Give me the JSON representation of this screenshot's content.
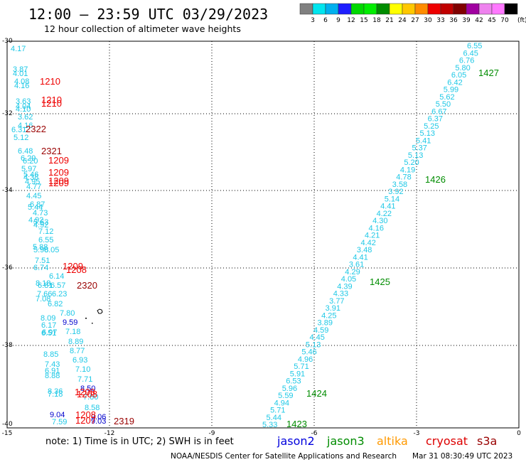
{
  "header": {
    "title": "12:00 – 23:59 UTC 03/29/2023",
    "subtitle": "12 hour collection of altimeter wave heights"
  },
  "legend": {
    "colors": [
      "#808080",
      "#00e5ee",
      "#00b0ee",
      "#1e1eff",
      "#00d800",
      "#00ee00",
      "#008c00",
      "#ffff00",
      "#ffc800",
      "#ff8c00",
      "#ee0000",
      "#c00000",
      "#800000",
      "#a000a0",
      "#ee82ee",
      "#ff78ff",
      "#000000"
    ],
    "labels": [
      "3",
      "6",
      "9",
      "12",
      "15",
      "18",
      "21",
      "24",
      "27",
      "30",
      "33",
      "36",
      "39",
      "42",
      "45",
      "70",
      "(ft)"
    ]
  },
  "axes": {
    "lat_labels": [
      "-30",
      "-32",
      "-34",
      "-36",
      "-38",
      "-40"
    ],
    "lon_labels": [
      "-15",
      "-12",
      "-9",
      "-6",
      "-3",
      "0"
    ]
  },
  "note": "note:  1) Time is in UTC;  2) SWH is in feet",
  "satellites": [
    {
      "name": "jason2",
      "color": "#0000dd"
    },
    {
      "name": "jason3",
      "color": "#008c00"
    },
    {
      "name": "altika",
      "color": "#ff9900"
    },
    {
      "name": "cryosat",
      "color": "#dd0000"
    },
    {
      "name": "s3a",
      "color": "#990000"
    }
  ],
  "footer": {
    "credit": "NOAA/NESDIS Center for Satellite Applications and Research",
    "timestamp": "Mar 31 08:30:49 UTC 2023"
  },
  "chart_data": {
    "type": "scatter",
    "xlim": [
      -15,
      0
    ],
    "ylim": [
      -40,
      -30
    ],
    "track_right_values": [
      "6.55",
      "6.45",
      "6.76",
      "5.80",
      "6.05",
      "6.42",
      "5.99",
      "5.62",
      "5.50",
      "6.67",
      "6.37",
      "5.25",
      "5.13",
      "5.41",
      "5.37",
      "5.13",
      "5.20",
      "4.19",
      "4.78",
      "3.58",
      "3.92",
      "5.14",
      "4.41",
      "4.22",
      "4.30",
      "4.16",
      "4.21",
      "4.42",
      "3.48",
      "4.41",
      "3.61",
      "4.29",
      "4.05",
      "4.39",
      "4.33",
      "3.77",
      "3.91",
      "4.25",
      "3.89",
      "4.59",
      "4.45",
      "5.13",
      "5.46",
      "4.96",
      "5.71",
      "5.91",
      "6.53",
      "5.96",
      "5.59",
      "4.94",
      "5.71",
      "5.44",
      "5.33"
    ],
    "track_left_values": [
      "4.17",
      "3.87",
      "4.01",
      "4.08",
      "4.16",
      "3.63",
      "4.04",
      "4.10",
      "3.62",
      "4.16",
      "6.31",
      "5.12",
      "6.48",
      "6.29",
      "6.20",
      "5.97",
      "5.46",
      "4.38",
      "4.95",
      "4.77",
      "4.45",
      "6.87",
      "5.44",
      "4.73",
      "4.92",
      "5.63",
      "4.92",
      "7.12",
      "6.55",
      "5.88",
      "5.98",
      "6.05",
      "7.51",
      "6.74",
      "6.14",
      "8.18",
      "6.81",
      "6.57",
      "7.66",
      "6.23",
      "7.08",
      "6.82",
      "7.80",
      "8.09",
      "6.17",
      "6.51",
      "7.18",
      "6.97",
      "8.89",
      "8.77",
      "8.85",
      "6.93",
      "7.43",
      "6.91",
      "7.10",
      "8.88",
      "7.71",
      "8.36",
      "7.18",
      "7.80",
      "8.58",
      "7.59",
      "8.41"
    ],
    "track_left_blue_values": [
      "9.59",
      "8.50",
      "9.04",
      "9.06",
      "9.03"
    ],
    "time_labels_red": [
      "1210",
      "1210",
      "1210",
      "1209",
      "1209",
      "1209",
      "1209",
      "1209",
      "1208",
      "1208",
      "1208",
      "1208",
      "1207"
    ],
    "time_labels_darkred": [
      "2322",
      "2321",
      "2320",
      "2319"
    ],
    "time_labels_green": [
      "1427",
      "1426",
      "1425",
      "1424",
      "1423"
    ]
  }
}
